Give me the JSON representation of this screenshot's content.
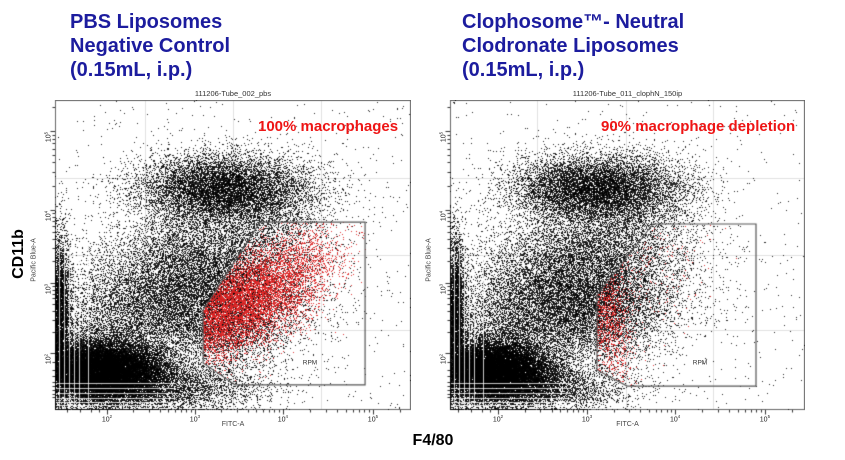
{
  "figure": {
    "panels": [
      {
        "title": "PBS Liposomes\nNegative Control\n(0.15mL, i.p.)"
      },
      {
        "title": "Clophosome™- Neutral\nClodronate Liposomes\n(0.15mL, i.p.)"
      }
    ],
    "x_group_label": "F4/80",
    "y_group_label": "CD11b"
  },
  "colors": {
    "title_blue": "#1c1c9e",
    "annotation_red": "#ee1515",
    "dot_black": "rgba(0,0,0,0.85)",
    "dot_red": "rgba(221,34,34,0.9)",
    "grid_gray": "#e0e0e0",
    "gate_stroke": "#555555",
    "border": "#666666"
  },
  "chart_data": [
    {
      "type": "scatter",
      "flavor": "flow-cytometry-dot-plot",
      "title": "111206-Tube_002_pbs",
      "annotation": "100% macrophages",
      "x_axis": {
        "label": "FITC-A",
        "scale": "biexponential-log",
        "decade_exponents": [
          2,
          3,
          4,
          5
        ],
        "decade_positions": [
          0.146,
          0.393,
          0.64,
          0.893
        ],
        "grid": [
          0.252,
          0.5,
          0.748
        ]
      },
      "y_axis": {
        "label": "Pacific Blue-A",
        "scale": "biexponential-log",
        "decade_exponents": [
          5,
          4,
          3,
          2
        ],
        "decade_positions": [
          0.1,
          0.355,
          0.59,
          0.816
        ],
        "grid": [
          0.253,
          0.5,
          0.742
        ]
      },
      "gate": {
        "label": "RPM",
        "label_pos": [
          0.716,
          0.848
        ],
        "vertices": [
          [
            0.576,
            0.394
          ],
          [
            0.871,
            0.394
          ],
          [
            0.871,
            0.919
          ],
          [
            0.506,
            0.919
          ],
          [
            0.416,
            0.848
          ],
          [
            0.416,
            0.677
          ]
        ]
      },
      "populations": [
        {
          "name": "cd11b-high-cloud",
          "color": "black",
          "cx": 0.46,
          "cy": 0.285,
          "sx": 0.115,
          "sy": 0.055,
          "rot": 0,
          "n": 9000
        },
        {
          "name": "cloud-right-tail",
          "color": "black",
          "cx": 0.62,
          "cy": 0.33,
          "sx": 0.1,
          "sy": 0.07,
          "rot": -20,
          "n": 1500
        },
        {
          "name": "mid-cloud",
          "color": "black",
          "cx": 0.4,
          "cy": 0.52,
          "sx": 0.155,
          "sy": 0.095,
          "rot": -15,
          "n": 8000
        },
        {
          "name": "low-mid-cloud",
          "color": "black",
          "cx": 0.32,
          "cy": 0.68,
          "sx": 0.19,
          "sy": 0.085,
          "rot": -8,
          "n": 9000
        },
        {
          "name": "debris-blob",
          "color": "black",
          "cx": 0.13,
          "cy": 0.875,
          "sx": 0.09,
          "sy": 0.05,
          "rot": 0,
          "n": 26000
        },
        {
          "name": "axis-column",
          "color": "black",
          "cx": 0.015,
          "cy": 0.7,
          "sx": 0.014,
          "sy": 0.13,
          "rot": 0,
          "n": 5000
        },
        {
          "name": "bottom-band",
          "color": "black",
          "cx": 0.28,
          "cy": 0.93,
          "sx": 0.15,
          "sy": 0.04,
          "rot": 0,
          "n": 4500
        },
        {
          "name": "gate-edge-tail",
          "color": "black",
          "cx": 0.5,
          "cy": 0.72,
          "sx": 0.1,
          "sy": 0.09,
          "rot": -30,
          "n": 2500
        },
        {
          "name": "sparse-uniform",
          "color": "black",
          "uniform": true,
          "n": 700
        },
        {
          "name": "macrophages",
          "color": "red",
          "cx": 0.52,
          "cy": 0.655,
          "sx": 0.15,
          "sy": 0.067,
          "rot": -36,
          "n": 10000,
          "clip": "gate"
        }
      ]
    },
    {
      "type": "scatter",
      "flavor": "flow-cytometry-dot-plot",
      "title": "111206-Tube_011_clophN_150ip",
      "annotation": "90% macrophage depletion",
      "x_axis": {
        "label": "FITC-A",
        "scale": "biexponential-log",
        "decade_exponents": [
          2,
          3,
          4,
          5
        ],
        "decade_positions": [
          0.135,
          0.386,
          0.634,
          0.887
        ],
        "grid": [
          0.245,
          0.495,
          0.74
        ]
      },
      "y_axis": {
        "label": "Pacific Blue-A",
        "scale": "biexponential-log",
        "decade_exponents": [
          5,
          4,
          3,
          2
        ],
        "decade_positions": [
          0.1,
          0.355,
          0.59,
          0.816
        ],
        "grid": [
          0.253,
          0.5,
          0.742
        ]
      },
      "gate": {
        "label": "RPM",
        "label_pos": [
          0.704,
          0.848
        ],
        "vertices": [
          [
            0.572,
            0.4
          ],
          [
            0.862,
            0.4
          ],
          [
            0.862,
            0.923
          ],
          [
            0.499,
            0.923
          ],
          [
            0.414,
            0.871
          ],
          [
            0.414,
            0.629
          ]
        ]
      },
      "populations": [
        {
          "name": "cd11b-high-cloud",
          "color": "black",
          "cx": 0.4,
          "cy": 0.285,
          "sx": 0.115,
          "sy": 0.055,
          "rot": 0,
          "n": 9000
        },
        {
          "name": "cloud-right-tail",
          "color": "black",
          "cx": 0.56,
          "cy": 0.33,
          "sx": 0.09,
          "sy": 0.07,
          "rot": -20,
          "n": 1300
        },
        {
          "name": "mid-cloud",
          "color": "black",
          "cx": 0.37,
          "cy": 0.52,
          "sx": 0.15,
          "sy": 0.095,
          "rot": -15,
          "n": 8000
        },
        {
          "name": "low-mid-cloud",
          "color": "black",
          "cx": 0.29,
          "cy": 0.68,
          "sx": 0.18,
          "sy": 0.085,
          "rot": -8,
          "n": 9000
        },
        {
          "name": "debris-blob",
          "color": "black",
          "cx": 0.12,
          "cy": 0.875,
          "sx": 0.085,
          "sy": 0.05,
          "rot": 0,
          "n": 24000
        },
        {
          "name": "axis-column",
          "color": "black",
          "cx": 0.015,
          "cy": 0.7,
          "sx": 0.014,
          "sy": 0.13,
          "rot": 0,
          "n": 5000
        },
        {
          "name": "bottom-band",
          "color": "black",
          "cx": 0.24,
          "cy": 0.93,
          "sx": 0.13,
          "sy": 0.04,
          "rot": 0,
          "n": 4000
        },
        {
          "name": "gate-edge-tail",
          "color": "black",
          "cx": 0.44,
          "cy": 0.7,
          "sx": 0.09,
          "sy": 0.09,
          "rot": -30,
          "n": 2000
        },
        {
          "name": "sparse-uniform",
          "color": "black",
          "uniform": true,
          "n": 600
        },
        {
          "name": "residual-macrophages",
          "color": "red",
          "cx": 0.43,
          "cy": 0.67,
          "sx": 0.035,
          "sy": 0.12,
          "rot": -10,
          "n": 1700,
          "clip": "gate"
        },
        {
          "name": "residual-macrophages-sparse",
          "color": "red",
          "cx": 0.53,
          "cy": 0.52,
          "sx": 0.11,
          "sy": 0.12,
          "rot": -30,
          "n": 300,
          "clip": "gate"
        }
      ]
    }
  ]
}
